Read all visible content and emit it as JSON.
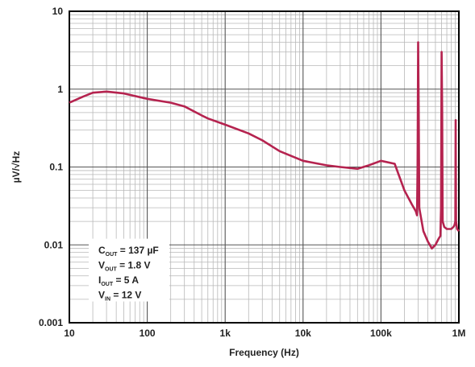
{
  "chart_data": {
    "type": "line",
    "title": "",
    "xlabel": "Frequency (Hz)",
    "ylabel": "µV/√Hz",
    "x_scale": "log",
    "y_scale": "log",
    "xlim": [
      10,
      1000000
    ],
    "ylim": [
      0.001,
      10
    ],
    "x_ticks": [
      {
        "value": 10,
        "label": "10"
      },
      {
        "value": 100,
        "label": "100"
      },
      {
        "value": 1000,
        "label": "1k"
      },
      {
        "value": 10000,
        "label": "10k"
      },
      {
        "value": 100000,
        "label": "100k"
      },
      {
        "value": 1000000,
        "label": "1M"
      }
    ],
    "y_ticks": [
      {
        "value": 10,
        "label": "10"
      },
      {
        "value": 1,
        "label": "1"
      },
      {
        "value": 0.1,
        "label": "0.1"
      },
      {
        "value": 0.01,
        "label": "0.01"
      },
      {
        "value": 0.001,
        "label": "0.001"
      }
    ],
    "grid": true,
    "line_color": "#b5234f",
    "series": [
      {
        "x": [
          10,
          15,
          20,
          30,
          50,
          100,
          200,
          300,
          500,
          600,
          1000,
          2000,
          3000,
          5000,
          10000,
          20000,
          30000,
          50000,
          70000,
          100000,
          150000,
          200000,
          250000,
          280000,
          290000,
          295000,
          300000,
          305000,
          310000,
          320000,
          350000,
          400000,
          450000,
          500000,
          550000,
          580000,
          590000,
          600000,
          610000,
          620000,
          650000,
          700000,
          800000,
          850000,
          880000,
          900000,
          910000,
          920000,
          950000,
          1000000
        ],
        "y": [
          0.67,
          0.8,
          0.9,
          0.93,
          0.88,
          0.75,
          0.67,
          0.6,
          0.46,
          0.42,
          0.35,
          0.27,
          0.22,
          0.16,
          0.12,
          0.105,
          0.1,
          0.095,
          0.105,
          0.12,
          0.11,
          0.05,
          0.033,
          0.027,
          0.024,
          0.1,
          4.0,
          0.5,
          0.03,
          0.025,
          0.015,
          0.011,
          0.009,
          0.01,
          0.012,
          0.013,
          0.03,
          3.0,
          0.5,
          0.02,
          0.017,
          0.016,
          0.016,
          0.017,
          0.018,
          0.02,
          0.4,
          0.02,
          0.016,
          0.015
        ]
      }
    ],
    "annotations": [
      {
        "main": "C",
        "sub": "OUT",
        "rest": " = 137 µF"
      },
      {
        "main": "V",
        "sub": "OUT",
        "rest": " = 1.8 V"
      },
      {
        "main": "I",
        "sub": "OUT",
        "rest": " = 5 A"
      },
      {
        "main": "V",
        "sub": "IN",
        "rest": " = 12 V"
      }
    ]
  }
}
